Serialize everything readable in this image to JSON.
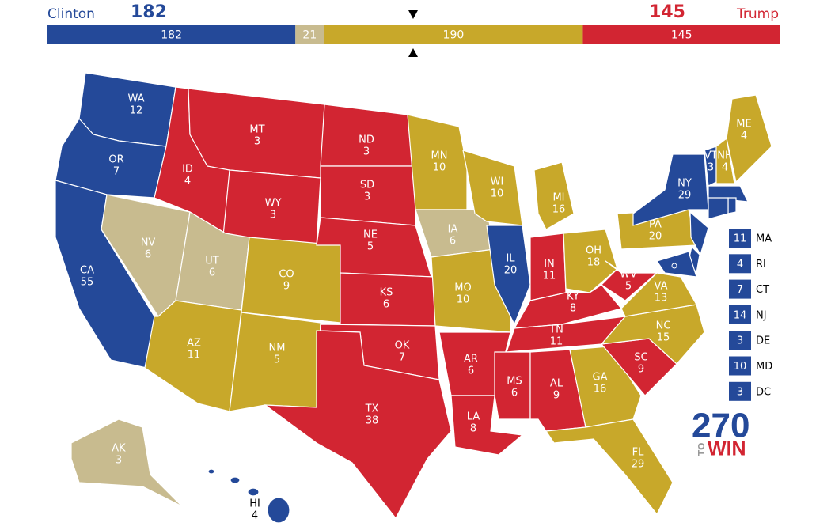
{
  "header": {
    "left_name": "Clinton",
    "left_total": 182,
    "left_color": "#244999",
    "right_name": "Trump",
    "right_total": 145,
    "right_color": "#d22532"
  },
  "bar": {
    "segments": [
      {
        "value": 182,
        "color": "#244999"
      },
      {
        "value": 21,
        "color": "#c8bb8f"
      },
      {
        "value": 190,
        "color": "#c8a82a"
      },
      {
        "value": 145,
        "color": "#d22532"
      }
    ]
  },
  "status_colors": {
    "clinton": "#244999",
    "tossup": "#c8bb8f",
    "undecided": "#c8a82a",
    "trump": "#d22532"
  },
  "states": [
    {
      "abbr": "WA",
      "votes": 12,
      "status": "clinton"
    },
    {
      "abbr": "OR",
      "votes": 7,
      "status": "clinton"
    },
    {
      "abbr": "CA",
      "votes": 55,
      "status": "clinton"
    },
    {
      "abbr": "NV",
      "votes": 6,
      "status": "tossup"
    },
    {
      "abbr": "ID",
      "votes": 4,
      "status": "trump"
    },
    {
      "abbr": "MT",
      "votes": 3,
      "status": "trump"
    },
    {
      "abbr": "WY",
      "votes": 3,
      "status": "trump"
    },
    {
      "abbr": "UT",
      "votes": 6,
      "status": "tossup"
    },
    {
      "abbr": "AZ",
      "votes": 11,
      "status": "undecided"
    },
    {
      "abbr": "CO",
      "votes": 9,
      "status": "undecided"
    },
    {
      "abbr": "NM",
      "votes": 5,
      "status": "undecided"
    },
    {
      "abbr": "ND",
      "votes": 3,
      "status": "trump"
    },
    {
      "abbr": "SD",
      "votes": 3,
      "status": "trump"
    },
    {
      "abbr": "NE",
      "votes": 5,
      "status": "trump"
    },
    {
      "abbr": "KS",
      "votes": 6,
      "status": "trump"
    },
    {
      "abbr": "OK",
      "votes": 7,
      "status": "trump"
    },
    {
      "abbr": "TX",
      "votes": 38,
      "status": "trump"
    },
    {
      "abbr": "MN",
      "votes": 10,
      "status": "undecided"
    },
    {
      "abbr": "IA",
      "votes": 6,
      "status": "tossup"
    },
    {
      "abbr": "MO",
      "votes": 10,
      "status": "undecided"
    },
    {
      "abbr": "AR",
      "votes": 6,
      "status": "trump"
    },
    {
      "abbr": "LA",
      "votes": 8,
      "status": "trump"
    },
    {
      "abbr": "WI",
      "votes": 10,
      "status": "undecided"
    },
    {
      "abbr": "IL",
      "votes": 20,
      "status": "clinton"
    },
    {
      "abbr": "MI",
      "votes": 16,
      "status": "undecided"
    },
    {
      "abbr": "IN",
      "votes": 11,
      "status": "trump"
    },
    {
      "abbr": "OH",
      "votes": 18,
      "status": "undecided"
    },
    {
      "abbr": "KY",
      "votes": 8,
      "status": "trump"
    },
    {
      "abbr": "TN",
      "votes": 11,
      "status": "trump"
    },
    {
      "abbr": "MS",
      "votes": 6,
      "status": "trump"
    },
    {
      "abbr": "AL",
      "votes": 9,
      "status": "trump"
    },
    {
      "abbr": "GA",
      "votes": 16,
      "status": "undecided"
    },
    {
      "abbr": "FL",
      "votes": 29,
      "status": "undecided"
    },
    {
      "abbr": "SC",
      "votes": 9,
      "status": "trump"
    },
    {
      "abbr": "NC",
      "votes": 15,
      "status": "undecided"
    },
    {
      "abbr": "VA",
      "votes": 13,
      "status": "undecided"
    },
    {
      "abbr": "WV",
      "votes": 5,
      "status": "trump"
    },
    {
      "abbr": "PA",
      "votes": 20,
      "status": "undecided"
    },
    {
      "abbr": "NY",
      "votes": 29,
      "status": "clinton"
    },
    {
      "abbr": "VT",
      "votes": 3,
      "status": "clinton"
    },
    {
      "abbr": "NH",
      "votes": 4,
      "status": "undecided"
    },
    {
      "abbr": "ME",
      "votes": 4,
      "status": "undecided"
    },
    {
      "abbr": "AK",
      "votes": 3,
      "status": "tossup"
    },
    {
      "abbr": "HI",
      "votes": 4,
      "status": "clinton"
    },
    {
      "abbr": "MA",
      "votes": 11,
      "status": "clinton",
      "callout": true
    },
    {
      "abbr": "RI",
      "votes": 4,
      "status": "clinton",
      "callout": true
    },
    {
      "abbr": "CT",
      "votes": 7,
      "status": "clinton",
      "callout": true
    },
    {
      "abbr": "NJ",
      "votes": 14,
      "status": "clinton",
      "callout": true
    },
    {
      "abbr": "DE",
      "votes": 3,
      "status": "clinton",
      "callout": true
    },
    {
      "abbr": "MD",
      "votes": 10,
      "status": "clinton",
      "callout": true
    },
    {
      "abbr": "DC",
      "votes": 3,
      "status": "clinton",
      "callout": true
    }
  ],
  "logo": {
    "number": "270",
    "to": "TO",
    "win": "WIN"
  }
}
